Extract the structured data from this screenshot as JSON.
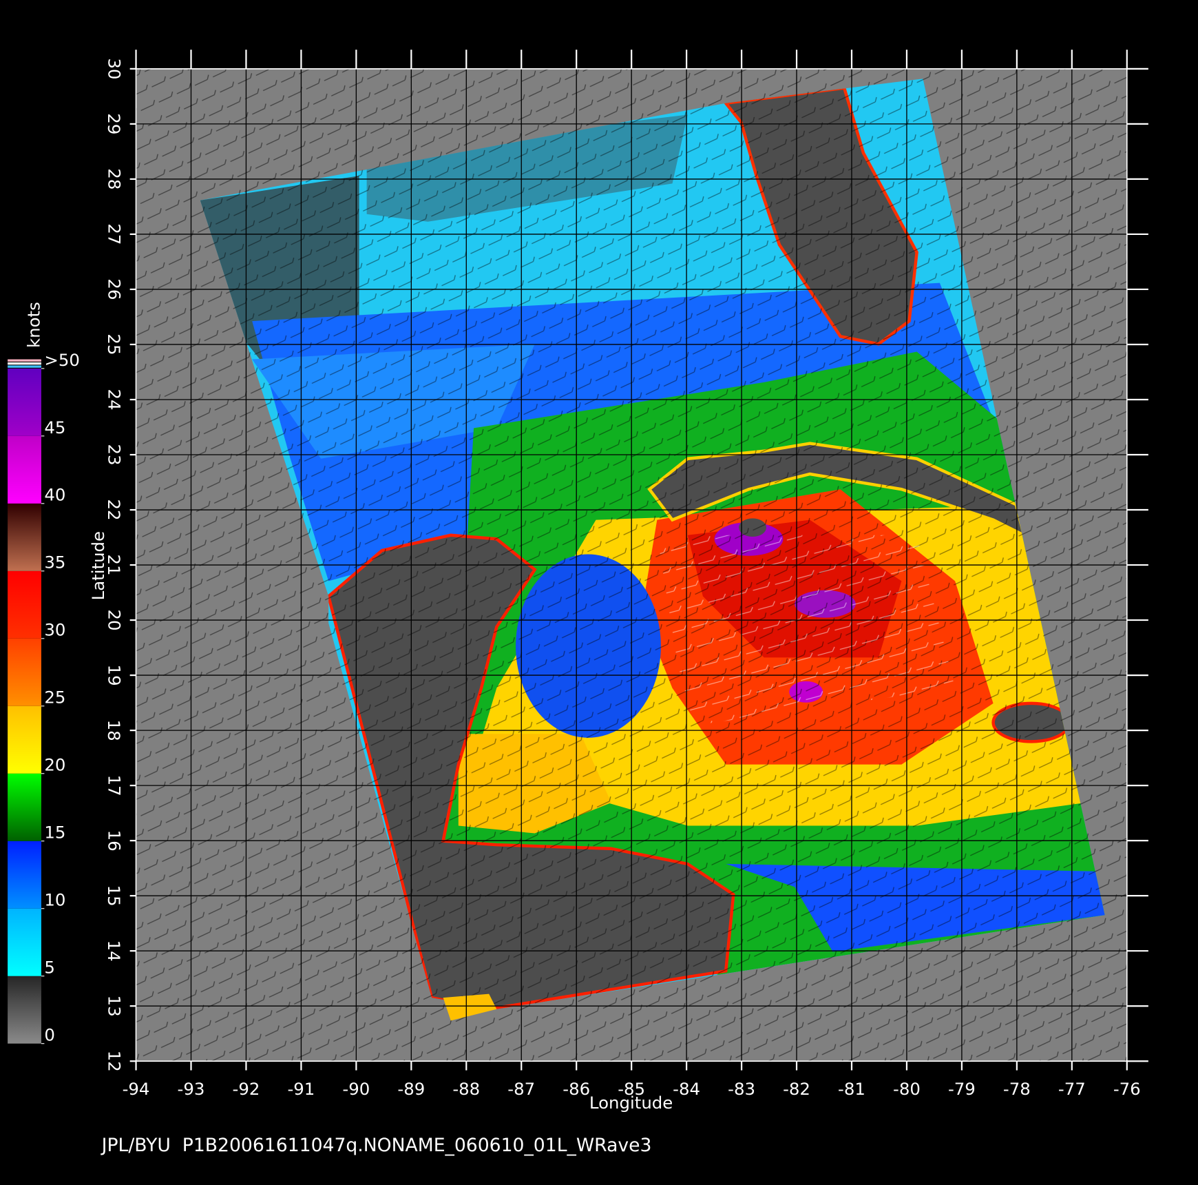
{
  "map": {
    "xlabel": "Longitude",
    "ylabel": "Latitude",
    "xlim": [
      -94,
      -76
    ],
    "ylim": [
      12,
      30
    ],
    "xticks": [
      -94,
      -93,
      -92,
      -91,
      -90,
      -89,
      -88,
      -87,
      -86,
      -85,
      -84,
      -83,
      -82,
      -81,
      -80,
      -79,
      -78,
      -77,
      -76
    ],
    "yticks": [
      12,
      13,
      14,
      15,
      16,
      17,
      18,
      19,
      20,
      21,
      22,
      23,
      24,
      25,
      26,
      27,
      28,
      29,
      30
    ],
    "grid": true
  },
  "colorbar": {
    "title": "knots",
    "lim": [
      0,
      50
    ],
    "ticks": [
      0,
      5,
      10,
      15,
      20,
      25,
      30,
      35,
      40,
      45,
      {
        "value": 50,
        "label": ">50"
      }
    ],
    "bands": [
      [
        "#8a8a8a",
        "#262626"
      ],
      [
        "#00ffff",
        "#00b4ff"
      ],
      [
        "#0090ff",
        "#0020ff"
      ],
      [
        "#006000",
        "#00ff00"
      ],
      [
        "#ffff00",
        "#ffc000"
      ],
      [
        "#ff9000",
        "#ff4000"
      ],
      [
        "#ff3000",
        "#ff0000"
      ],
      [
        "#c07050",
        "#300000"
      ],
      [
        "#ff00ff",
        "#c000c8"
      ],
      [
        "#a000c8",
        "#6000c0"
      ]
    ]
  },
  "footer": "JPL/BYU  P1B20061611047q.NONAME_060610_01L_WRave3"
}
